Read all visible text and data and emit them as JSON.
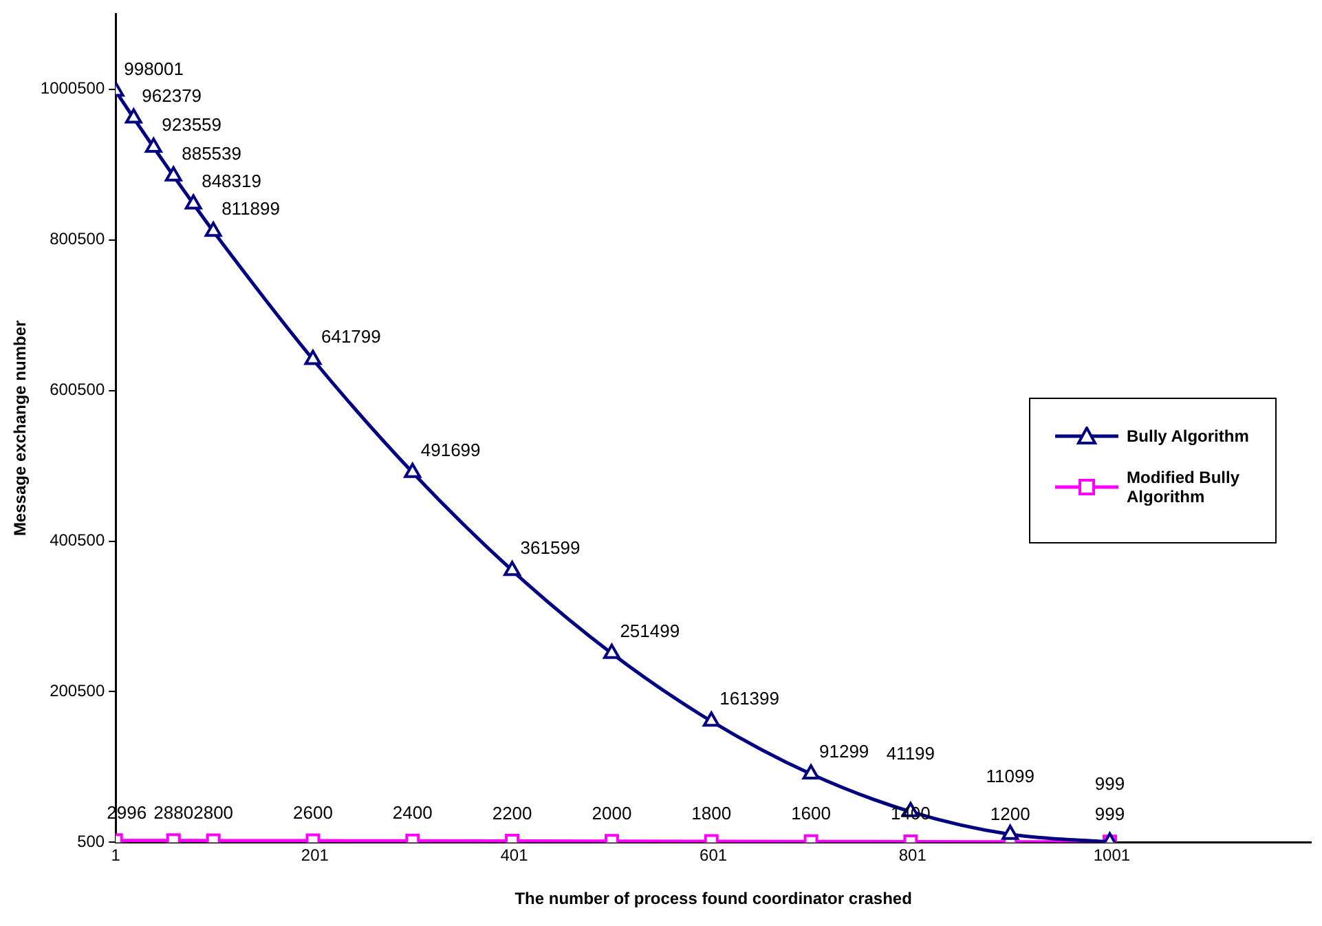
{
  "chart_data": {
    "type": "line",
    "xlabel": "The number of process found coordinator crashed",
    "ylabel": "Message exchange number",
    "xlim": [
      1,
      1201
    ],
    "xticks": [
      1,
      201,
      401,
      601,
      801,
      1001
    ],
    "ylim": [
      500,
      1100500
    ],
    "yticks": [
      500,
      200500,
      400500,
      600500,
      800500,
      1000500
    ],
    "grid": false,
    "legend": "right",
    "data_labels": true,
    "line_style": "solid",
    "series": [
      {
        "name": "Bully Algorithm",
        "color": "#000080",
        "marker": "triangle",
        "x": [
          1,
          19,
          39,
          59,
          79,
          99,
          199,
          299,
          399,
          499,
          599,
          699,
          799,
          899,
          999
        ],
        "values": [
          998001,
          962379,
          923559,
          885539,
          848319,
          811899,
          641799,
          491699,
          361599,
          251499,
          161399,
          91299,
          41199,
          11099,
          999
        ]
      },
      {
        "name": "Modified Bully Algorithm",
        "color": "#ff00ff",
        "marker": "square",
        "x": [
          1,
          59,
          99,
          199,
          299,
          399,
          499,
          599,
          699,
          799,
          899,
          999
        ],
        "values": [
          2996,
          2880,
          2800,
          2600,
          2400,
          2200,
          2000,
          1800,
          1600,
          1400,
          1200,
          999
        ]
      }
    ]
  }
}
